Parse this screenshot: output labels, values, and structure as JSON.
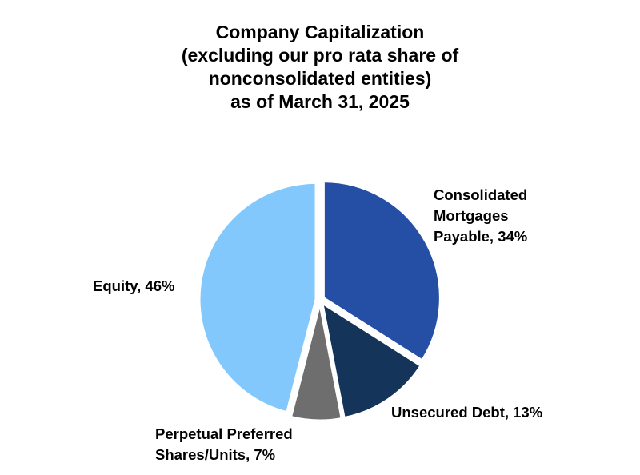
{
  "chart_data": {
    "type": "pie",
    "title": "Company Capitalization (excluding our pro rata share of nonconsolidated entities) as of March 31, 2025",
    "title_lines": [
      "Company Capitalization",
      "(excluding our pro rata share of",
      "nonconsolidated entities)",
      "as of March 31, 2025"
    ],
    "categories": [
      "Consolidated Mortgages Payable",
      "Unsecured Debt",
      "Perpetual Preferred Shares/Units",
      "Equity"
    ],
    "values": [
      34,
      13,
      7,
      46
    ],
    "unit": "%",
    "colors": [
      "#254EA5",
      "#15345A",
      "#6E6E6E",
      "#82C8FC"
    ],
    "start_angle": "12 o'clock, clockwise",
    "exploded": true,
    "legend": "none (data labels beside slices)",
    "labels": {
      "consolidated_mortgages": [
        "Consolidated",
        "Mortgages",
        "Payable, 34%"
      ],
      "unsecured_debt": "Unsecured Debt, 13%",
      "perpetual_preferred": [
        "Perpetual Preferred",
        "Shares/Units, 7%"
      ],
      "equity": "Equity, 46%"
    }
  }
}
